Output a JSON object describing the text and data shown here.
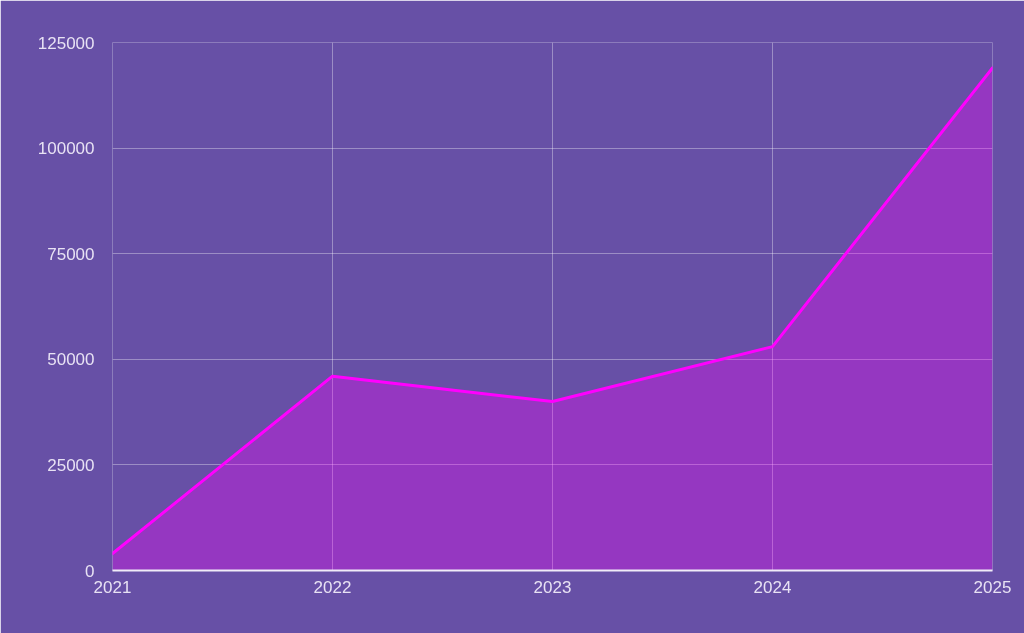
{
  "chart_data": {
    "type": "area",
    "categories": [
      "2021",
      "2022",
      "2023",
      "2024",
      "2025"
    ],
    "series": [
      {
        "color": "#ff00ff",
        "values": [
          4000,
          46000,
          40000,
          53000,
          119000
        ]
      }
    ],
    "ylim": [
      0,
      125000
    ],
    "yticks": [
      0,
      25000,
      50000,
      75000,
      100000,
      125000
    ],
    "grid": true
  }
}
